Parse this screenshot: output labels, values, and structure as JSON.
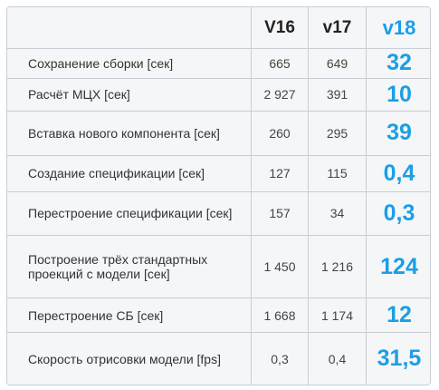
{
  "header": {
    "label": "",
    "v16": "V16",
    "v17": "v17",
    "v18": "v18"
  },
  "rows": [
    {
      "label": "Сохранение сборки [сек]",
      "v16": "665",
      "v17": "649",
      "v18": "32"
    },
    {
      "label": "Расчёт МЦХ [сек]",
      "v16": "2 927",
      "v17": "391",
      "v18": "10"
    },
    {
      "label": "Вставка нового компонента [сек]",
      "v16": "260",
      "v17": "295",
      "v18": "39"
    },
    {
      "label": "Создание спецификации [сек]",
      "v16": "127",
      "v17": "115",
      "v18": "0,4"
    },
    {
      "label": "Перестроение спецификации [сек]",
      "v16": "157",
      "v17": "34",
      "v18": "0,3"
    },
    {
      "label": "Построение трёх стандартных проекций с модели [сек]",
      "v16": "1 450",
      "v17": "1 216",
      "v18": "124"
    },
    {
      "label": "Перестроение СБ [сек]",
      "v16": "1 668",
      "v17": "1 174",
      "v18": "12"
    },
    {
      "label": "Скорость отрисовки модели [fps]",
      "v16": "0,3",
      "v17": "0,4",
      "v18": "31,5"
    }
  ],
  "colors": {
    "accent": "#1a9fe6",
    "border": "#c8cdd6",
    "background": "#f5f6f8"
  }
}
